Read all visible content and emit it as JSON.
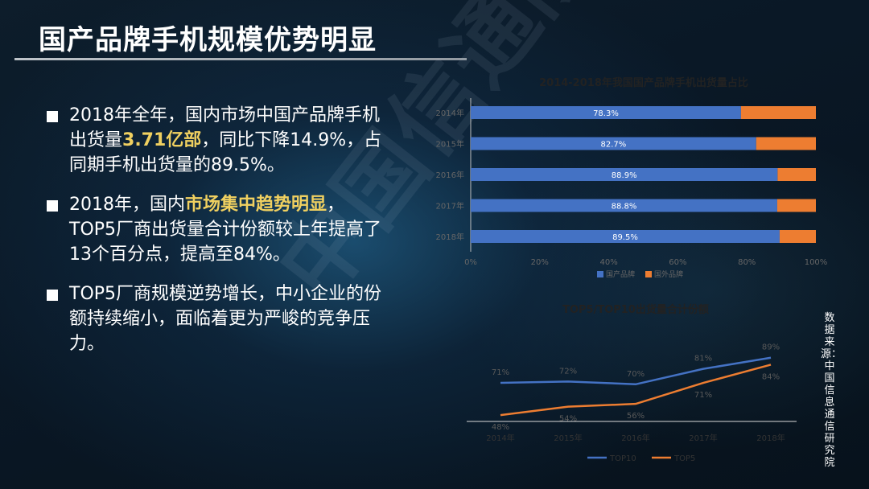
{
  "slide": {
    "title": "国产品牌手机规模优势明显",
    "watermark": "中国信通院"
  },
  "bullets": [
    {
      "parts": [
        "2018年全年，国内市场中国产品牌手机出货量",
        "3.71亿部",
        "，同比下降14.9%，占同期手机出货量的89.5%。"
      ]
    },
    {
      "parts": [
        "2018年，国内",
        "市场集中趋势明显",
        "，TOP5厂商出货量合计份额较上年提高了13个百分点，提高至84%。"
      ]
    },
    {
      "parts": [
        "TOP5厂商规模逆势增长，中小企业的份额持续缩小，面临着更为严峻的竞争压力。"
      ]
    }
  ],
  "source_note": "数据来源：中国信息通信研究院",
  "colors": {
    "domestic": "#4472c4",
    "foreign": "#ed7d31",
    "top10": "#4472c4",
    "top5": "#ed7d31",
    "highlight": "#f0d060"
  },
  "chart_data": [
    {
      "type": "bar",
      "orientation": "horizontal",
      "stacked": true,
      "title": "2014-2018年我国国产品牌手机出货量占比",
      "categories": [
        "2014年",
        "2015年",
        "2016年",
        "2017年",
        "2018年"
      ],
      "series": [
        {
          "name": "国产品牌",
          "values": [
            78.3,
            82.7,
            88.9,
            88.8,
            89.5
          ],
          "labels": [
            "78.3%",
            "82.7%",
            "88.9%",
            "88.8%",
            "89.5%"
          ]
        },
        {
          "name": "国外品牌",
          "values": [
            21.7,
            17.3,
            11.1,
            11.2,
            10.5
          ]
        }
      ],
      "xticks": [
        "0%",
        "20%",
        "40%",
        "60%",
        "80%",
        "100%"
      ],
      "xlim": [
        0,
        100
      ],
      "legend": "bottom"
    },
    {
      "type": "line",
      "title": "TOP5/TOP10出货量合计份额",
      "categories": [
        "2014年",
        "2015年",
        "2016年",
        "2017年",
        "2018年"
      ],
      "series": [
        {
          "name": "TOP10",
          "values": [
            71,
            72,
            70,
            81,
            89
          ],
          "labels": [
            "71%",
            "72%",
            "70%",
            "81%",
            "89%"
          ]
        },
        {
          "name": "TOP5",
          "values": [
            48,
            54,
            56,
            71,
            84
          ],
          "labels": [
            "48%",
            "54%",
            "56%",
            "71%",
            "84%"
          ]
        }
      ],
      "legend": "bottom"
    }
  ]
}
